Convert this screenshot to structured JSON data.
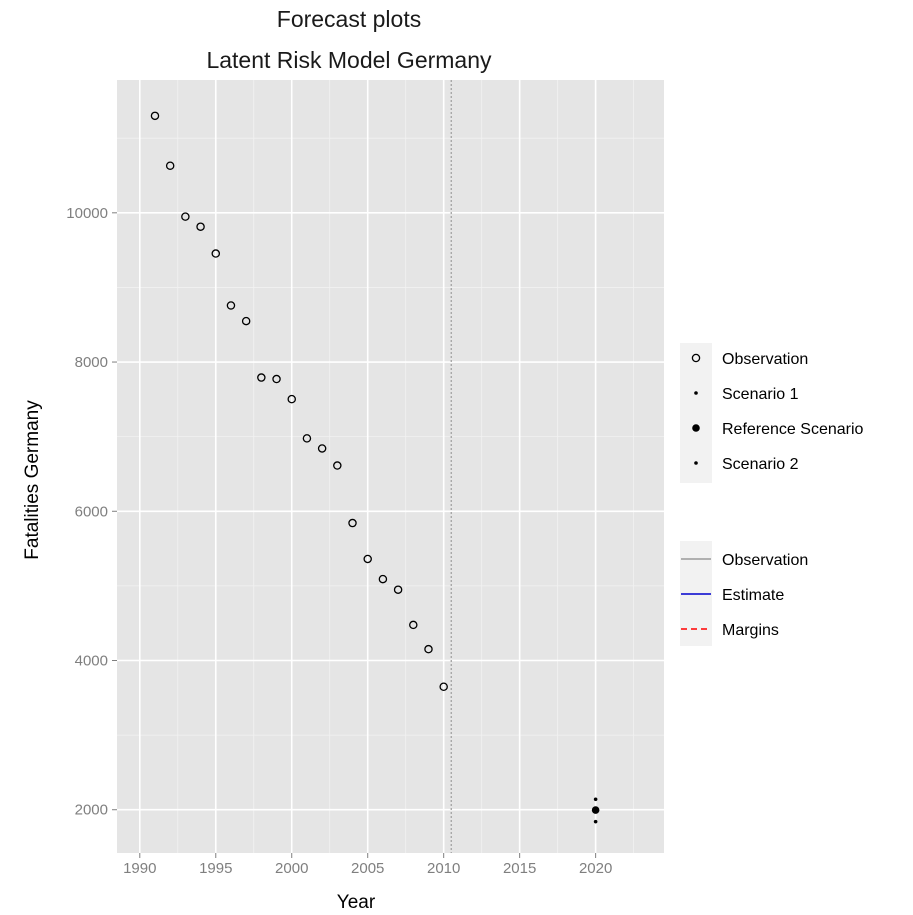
{
  "chart_data": {
    "type": "scatter",
    "title": "Forecast plots",
    "subtitle": "Latent Risk Model Germany",
    "xlabel": "Year",
    "ylabel": "Fatalities Germany",
    "xlim": [
      1988.5,
      2024.5
    ],
    "ylim": [
      1420,
      11780
    ],
    "xticks": [
      1990,
      1995,
      2000,
      2005,
      2010,
      2015,
      2020
    ],
    "yticks": [
      2000,
      4000,
      6000,
      8000,
      10000
    ],
    "grid": true,
    "vline": {
      "x": 2010.5
    },
    "series": [
      {
        "name": "Observation",
        "marker": "open-circle",
        "points": [
          [
            1991,
            11300
          ],
          [
            1992,
            10631
          ],
          [
            1993,
            9949
          ],
          [
            1994,
            9814
          ],
          [
            1995,
            9454
          ],
          [
            1996,
            8758
          ],
          [
            1997,
            8549
          ],
          [
            1998,
            7792
          ],
          [
            1999,
            7772
          ],
          [
            2000,
            7503
          ],
          [
            2001,
            6977
          ],
          [
            2002,
            6842
          ],
          [
            2003,
            6613
          ],
          [
            2004,
            5842
          ],
          [
            2005,
            5361
          ],
          [
            2006,
            5091
          ],
          [
            2007,
            4949
          ],
          [
            2008,
            4477
          ],
          [
            2009,
            4152
          ],
          [
            2010,
            3648
          ]
        ]
      },
      {
        "name": "Scenario 1",
        "marker": "small-dot",
        "points": [
          [
            2020,
            2140
          ]
        ]
      },
      {
        "name": "Reference Scenario",
        "marker": "filled-circle",
        "points": [
          [
            2020,
            1995
          ]
        ]
      },
      {
        "name": "Scenario 2",
        "marker": "small-dot",
        "points": [
          [
            2020,
            1840
          ]
        ]
      }
    ],
    "legend_points": {
      "items": [
        {
          "label": "Observation",
          "marker": "open-circle"
        },
        {
          "label": "Scenario 1",
          "marker": "small-dot"
        },
        {
          "label": "Reference Scenario",
          "marker": "filled-circle"
        },
        {
          "label": "Scenario 2",
          "marker": "small-dot"
        }
      ]
    },
    "legend_lines": {
      "items": [
        {
          "label": "Observation",
          "color": "#999999",
          "dash": "solid"
        },
        {
          "label": "Estimate",
          "color": "#0000cc",
          "dash": "solid"
        },
        {
          "label": "Margins",
          "color": "#ff0000",
          "dash": "dashed"
        }
      ]
    },
    "legend_placement": "right",
    "colors": {
      "panel": "#e5e5e5",
      "grid": "#ffffff",
      "point": "#000000",
      "vline": "#a8a8a8"
    }
  }
}
